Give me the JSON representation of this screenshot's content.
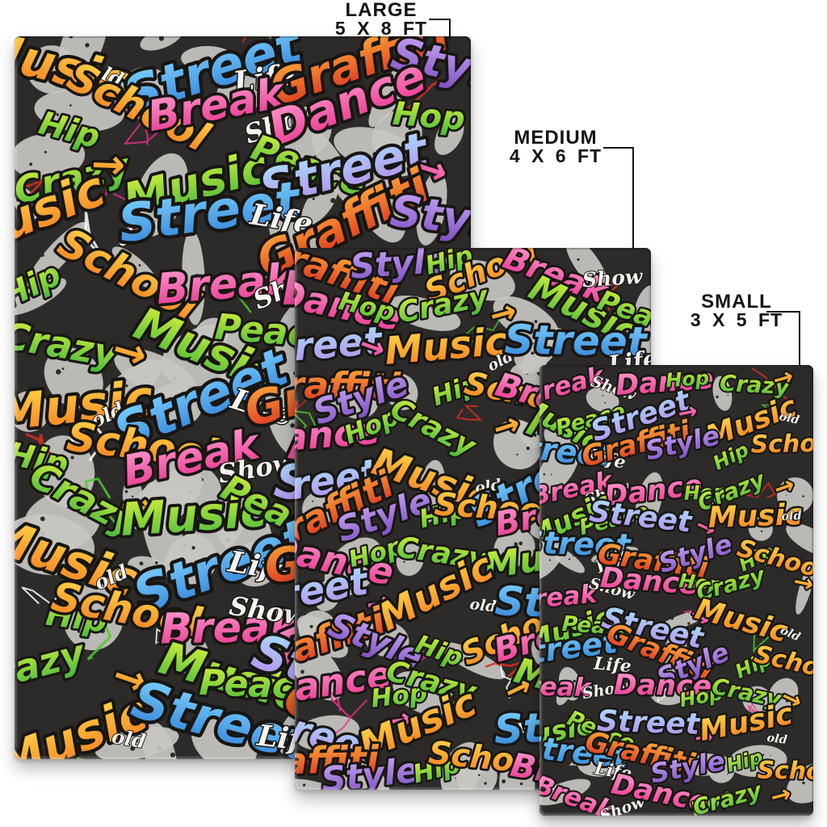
{
  "ui": {
    "ink": "#141414",
    "page_background": "#ffffff"
  },
  "sizes": [
    {
      "id": "large",
      "label": "LARGE",
      "dimensions": "5 X 8 FT"
    },
    {
      "id": "medium",
      "label": "MEDIUM",
      "dimensions": "4 X 6 FT"
    },
    {
      "id": "small",
      "label": "SMALL",
      "dimensions": "3 X 5 FT"
    }
  ],
  "pattern": {
    "background": "#2d2b29",
    "patch_color": "#c7c5c1",
    "speckle_color": "#2b2a27",
    "stroke_color": "#181613",
    "white": "#f5f3ef",
    "scribble_colors": [
      "#d92f23",
      "#4fc92e",
      "#ffffff",
      "#e8308a"
    ],
    "palettes": [
      [
        "#ffd94a",
        "#f47a1f"
      ],
      [
        "#ff9ed2",
        "#e8308a"
      ],
      [
        "#d6f23c",
        "#46b83c"
      ],
      [
        "#c9a8f5",
        "#7d4fc3"
      ],
      [
        "#7fd4ff",
        "#2f7fd6"
      ],
      [
        "#ffb03a",
        "#d92b1f"
      ],
      [
        "#a9e4ff",
        "#b388e8"
      ]
    ],
    "words": [
      {
        "text": "Music",
        "palette": 0,
        "size": 1.5
      },
      {
        "text": "old",
        "white": true,
        "size": 0.6
      },
      {
        "text": "Street",
        "palette": 4,
        "size": 1.6
      },
      {
        "text": "Life",
        "white": true,
        "size": 0.9
      },
      {
        "text": "Graffiti",
        "palette": 5,
        "size": 1.45
      },
      {
        "text": "Style",
        "palette": 3,
        "size": 1.35
      },
      {
        "text": "Hip",
        "palette": 2,
        "size": 1.0
      },
      {
        "text": "School",
        "palette": 0,
        "size": 1.25
      },
      {
        "text": "Break",
        "palette": 1,
        "size": 1.3
      },
      {
        "text": "Show",
        "white": true,
        "size": 0.8
      },
      {
        "text": "Dance",
        "palette": 1,
        "size": 1.45
      },
      {
        "text": "Hop",
        "palette": 2,
        "size": 1.0
      },
      {
        "text": "Crazy",
        "palette": 2,
        "size": 1.15
      },
      {
        "text": "→",
        "palette": 0,
        "size": 1.25,
        "arrow": true
      },
      {
        "text": "Music",
        "palette": 2,
        "size": 1.4
      },
      {
        "text": "Peace",
        "palette": 2,
        "size": 1.1
      },
      {
        "text": "Street",
        "palette": 6,
        "size": 1.5
      },
      {
        "text": "→",
        "palette": 1,
        "size": 1.2,
        "arrow": true
      }
    ]
  }
}
